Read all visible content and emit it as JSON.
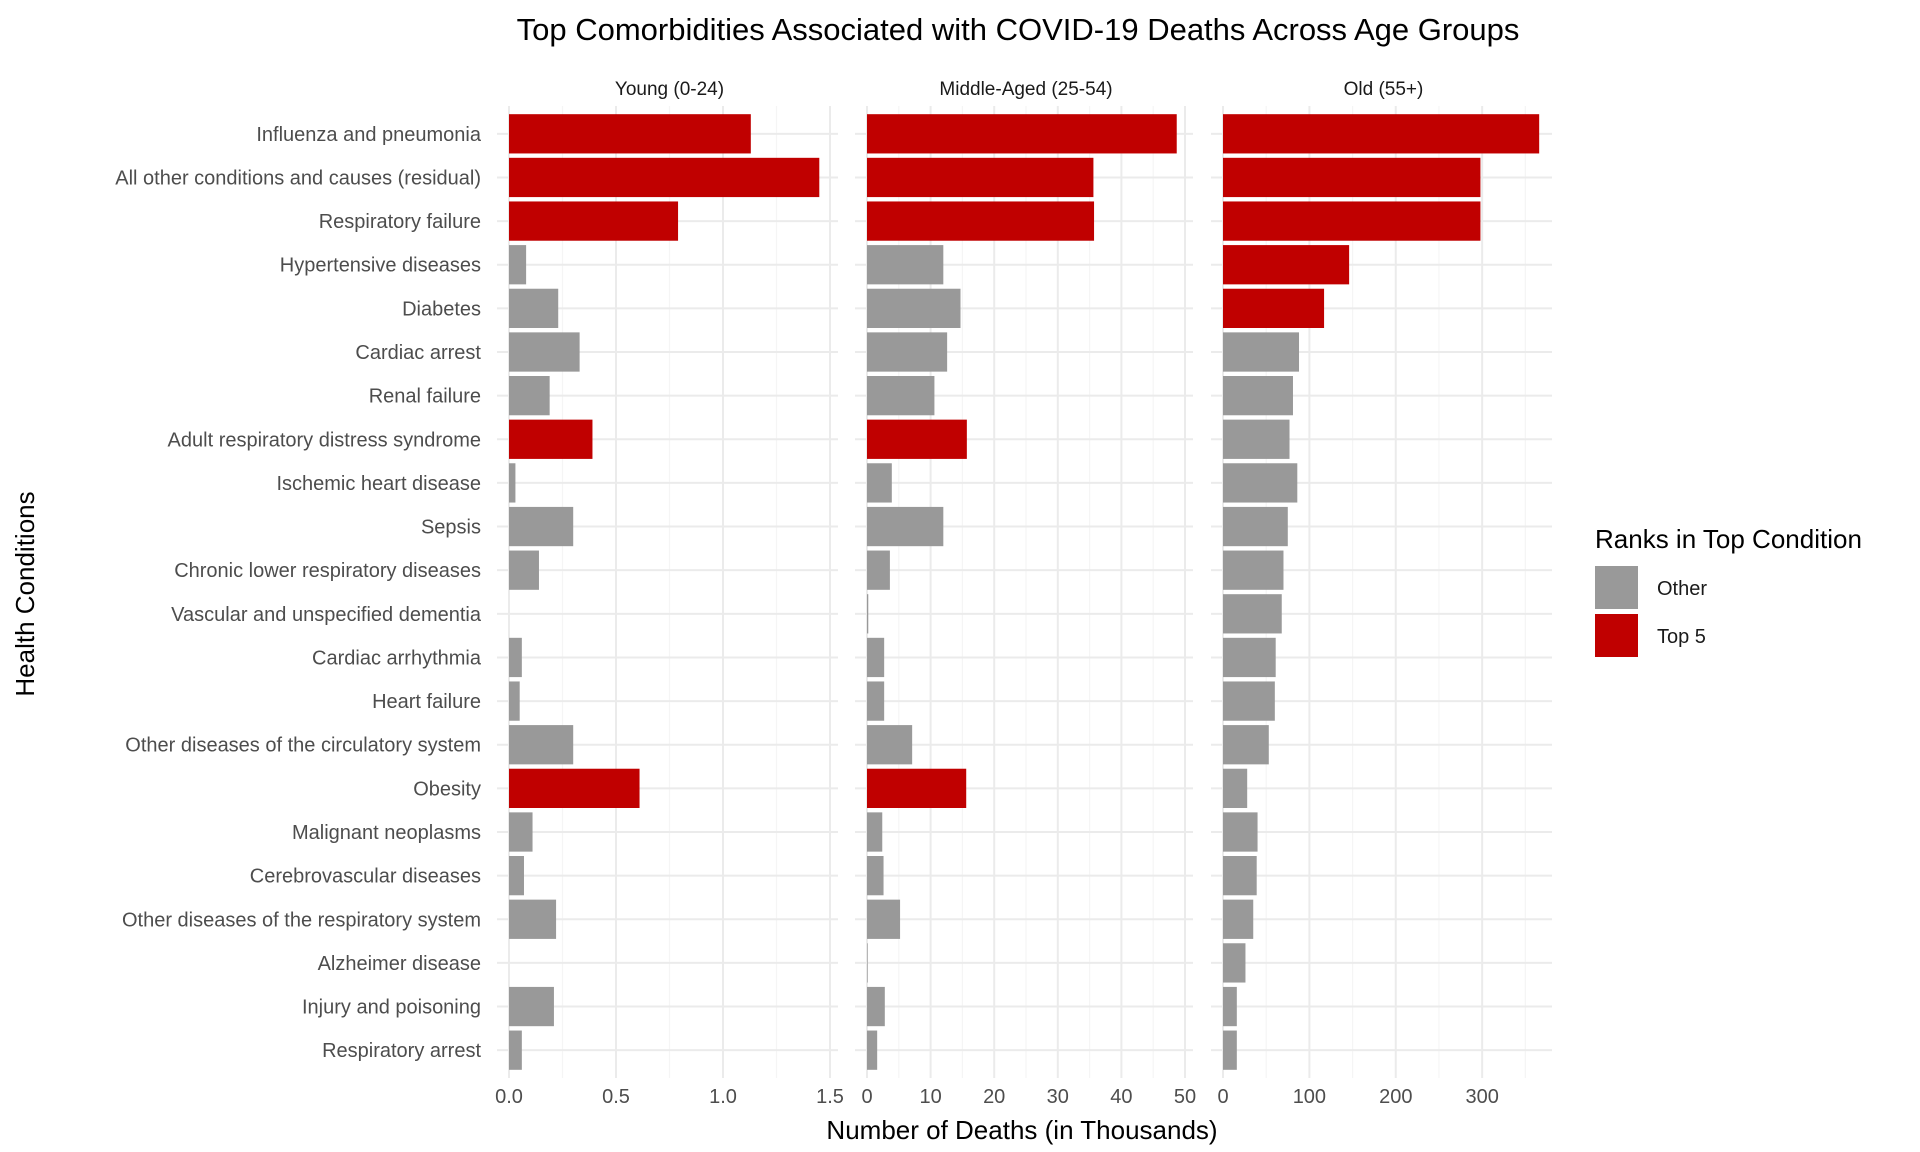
{
  "chart_data": {
    "type": "bar",
    "orientation": "horizontal",
    "title": "Top Comorbidities Associated with COVID-19 Deaths Across Age Groups",
    "xlabel": "Number of Deaths (in Thousands)",
    "ylabel": "Health Conditions",
    "categories": [
      "Influenza and pneumonia",
      "All other conditions and causes (residual)",
      "Respiratory failure",
      "Hypertensive diseases",
      "Diabetes",
      "Cardiac arrest",
      "Renal failure",
      "Adult respiratory distress syndrome",
      "Ischemic heart disease",
      "Sepsis",
      "Chronic lower respiratory diseases",
      "Vascular and unspecified dementia",
      "Cardiac arrhythmia",
      "Heart failure",
      "Other diseases of the circulatory system",
      "Obesity",
      "Malignant neoplasms",
      "Cerebrovascular diseases",
      "Other diseases of the respiratory system",
      "Alzheimer disease",
      "Injury and poisoning",
      "Respiratory arrest"
    ],
    "panels": [
      {
        "name": "Young (0-24)",
        "xlim": [
          0,
          1.5
        ],
        "ticks": [
          0.0,
          0.5,
          1.0,
          1.5
        ],
        "tick_labels": [
          "0.0",
          "0.5",
          "1.0",
          "1.5"
        ],
        "values": [
          1.13,
          1.45,
          0.79,
          0.08,
          0.23,
          0.33,
          0.19,
          0.39,
          0.03,
          0.3,
          0.14,
          0.0,
          0.06,
          0.05,
          0.3,
          0.61,
          0.11,
          0.07,
          0.22,
          0.0,
          0.21,
          0.06
        ],
        "top5": [
          true,
          true,
          true,
          false,
          false,
          false,
          false,
          true,
          false,
          false,
          false,
          false,
          false,
          false,
          false,
          true,
          false,
          false,
          false,
          false,
          false,
          false
        ]
      },
      {
        "name": "Middle-Aged (25-54)",
        "xlim": [
          0,
          50
        ],
        "ticks": [
          0,
          10,
          20,
          30,
          40,
          50
        ],
        "tick_labels": [
          "0",
          "10",
          "20",
          "30",
          "40",
          "50"
        ],
        "values": [
          48.7,
          35.6,
          35.7,
          12.0,
          14.7,
          12.6,
          10.6,
          15.7,
          3.9,
          12.0,
          3.6,
          0.2,
          2.7,
          2.7,
          7.1,
          15.6,
          2.4,
          2.6,
          5.2,
          0.1,
          2.8,
          1.6
        ],
        "top5": [
          true,
          true,
          true,
          false,
          false,
          false,
          false,
          true,
          false,
          false,
          false,
          false,
          false,
          false,
          false,
          true,
          false,
          false,
          false,
          false,
          false,
          false
        ]
      },
      {
        "name": "Old (55+)",
        "xlim": [
          0,
          360
        ],
        "ticks": [
          0,
          100,
          200,
          300
        ],
        "tick_labels": [
          "0",
          "100",
          "200",
          "300"
        ],
        "values": [
          366,
          298,
          298,
          146,
          117,
          88,
          81,
          77,
          86,
          75,
          70,
          68,
          61,
          60,
          53,
          28,
          40,
          39,
          35,
          26,
          16,
          16
        ],
        "top5": [
          true,
          true,
          true,
          true,
          true,
          false,
          false,
          false,
          false,
          false,
          false,
          false,
          false,
          false,
          false,
          false,
          false,
          false,
          false,
          false,
          false,
          false
        ]
      }
    ],
    "legend": {
      "title": "Ranks in Top Condition",
      "placement": "right",
      "items": [
        {
          "label": "Other",
          "color": "#999999"
        },
        {
          "label": "Top 5",
          "color": "#C00000"
        }
      ]
    },
    "grid": true
  },
  "colors": {
    "top5": "#C00000",
    "other": "#999999",
    "grid_major": "#EBEBEB",
    "grid_minor": "#F5F5F5"
  }
}
